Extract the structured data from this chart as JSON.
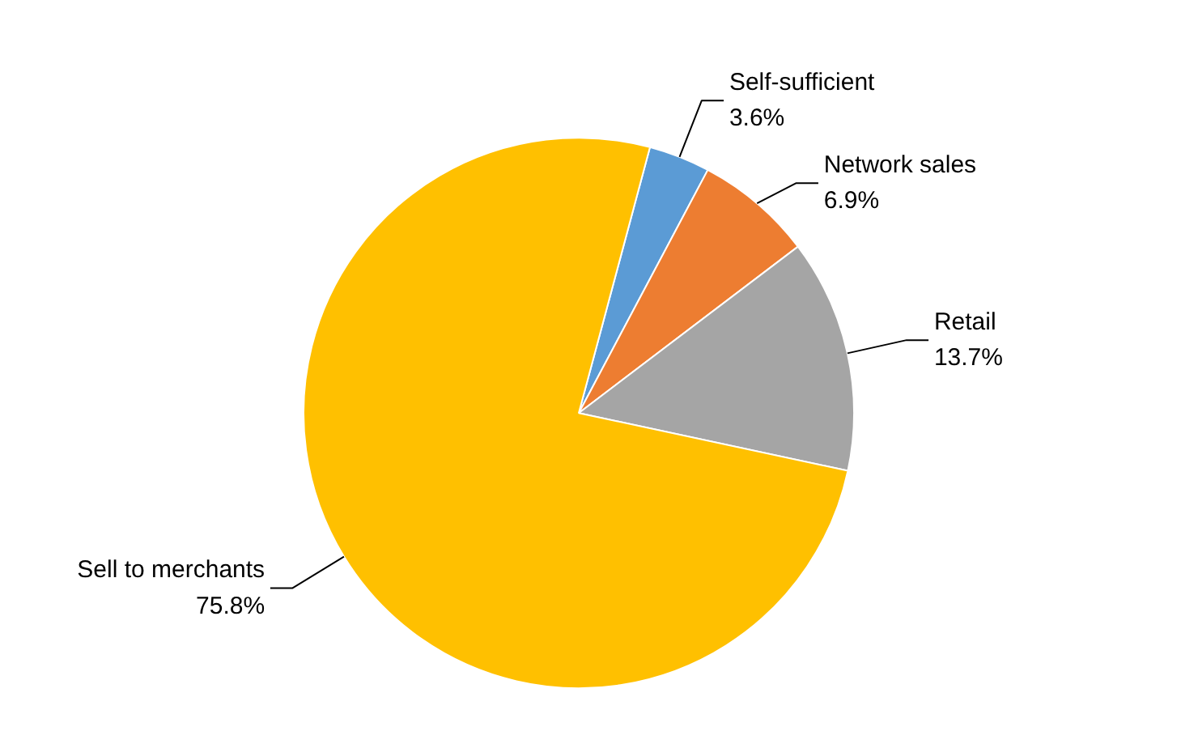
{
  "chart_data": {
    "type": "pie",
    "categories": [
      "Self-sufficient",
      "Network sales",
      "Retail",
      "Sell to merchants"
    ],
    "values": [
      3.6,
      6.9,
      13.7,
      75.8
    ],
    "value_labels": [
      "3.6%",
      "6.9%",
      "13.7%",
      "75.8%"
    ],
    "colors": [
      "#5b9bd5",
      "#ed7d31",
      "#a5a5a5",
      "#ffc000"
    ]
  }
}
